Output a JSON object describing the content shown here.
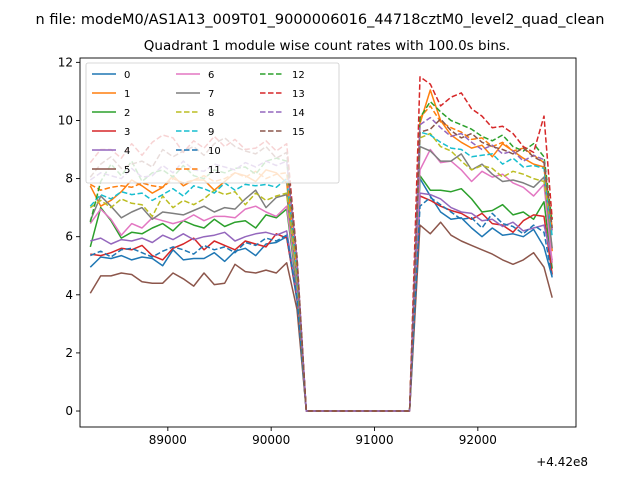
{
  "figure": {
    "suptitle": "n file: modeM0/AS1A13_009T01_9000006016_44718cztM0_level2_quad_clean",
    "offset_label": "+4.42e8"
  },
  "chart_data": {
    "type": "line",
    "title": "Quadrant 1 module wise count rates with 100.0s bins.",
    "xlabel": "",
    "ylabel": "",
    "x_offset": 442000000,
    "xlim": [
      88150,
      92950
    ],
    "ylim": [
      -0.55,
      12.15
    ],
    "xticks": [
      89000,
      90000,
      91000,
      92000
    ],
    "xtick_labels": [
      "89000",
      "90000",
      "91000",
      "92000"
    ],
    "yticks": [
      0,
      2,
      4,
      6,
      8,
      10,
      12
    ],
    "ytick_labels": [
      "0",
      "2",
      "4",
      "6",
      "8",
      "10",
      "12"
    ],
    "grid": false,
    "legend": {
      "placement": "top-left",
      "columns": 3
    },
    "x": [
      88250,
      88350,
      88450,
      88550,
      88650,
      88750,
      88850,
      88950,
      89050,
      89150,
      89250,
      89350,
      89450,
      89550,
      89650,
      89750,
      89850,
      89950,
      90050,
      90150,
      90250,
      90340,
      90500,
      90700,
      90900,
      91100,
      91340,
      91440,
      91540,
      91640,
      91740,
      91840,
      91940,
      92040,
      92140,
      92240,
      92340,
      92440,
      92540,
      92640,
      92720
    ],
    "series": [
      {
        "name": "0",
        "color": "#1f77b4",
        "dashed": false,
        "values": [
          4.95,
          5.3,
          5.25,
          5.35,
          5.2,
          5.3,
          5.25,
          5.0,
          5.55,
          5.2,
          5.25,
          5.25,
          5.45,
          5.15,
          5.5,
          5.6,
          5.35,
          5.75,
          5.8,
          6.0,
          3.8,
          0,
          0,
          0,
          0,
          0,
          0,
          8.0,
          7.4,
          6.85,
          6.6,
          6.65,
          6.3,
          6.0,
          6.3,
          6.05,
          6.1,
          6.0,
          6.25,
          5.65,
          4.6
        ]
      },
      {
        "name": "1",
        "color": "#ff7f0e",
        "dashed": false,
        "values": [
          7.75,
          7.05,
          7.25,
          7.55,
          7.95,
          7.75,
          7.5,
          7.7,
          8.1,
          7.75,
          7.95,
          7.95,
          7.6,
          7.9,
          8.2,
          8.1,
          7.9,
          8.3,
          8.2,
          7.85,
          4.5,
          0,
          0,
          0,
          0,
          0,
          0,
          9.9,
          11.05,
          10.0,
          9.5,
          9.25,
          9.05,
          9.15,
          8.75,
          9.2,
          8.95,
          8.7,
          8.5,
          8.4,
          5.5
        ]
      },
      {
        "name": "2",
        "color": "#2ca02c",
        "dashed": false,
        "values": [
          5.65,
          7.0,
          6.55,
          5.95,
          6.15,
          6.1,
          6.3,
          6.45,
          6.2,
          6.55,
          6.4,
          6.3,
          6.6,
          6.35,
          6.5,
          6.55,
          6.3,
          6.75,
          6.65,
          6.95,
          4.2,
          0,
          0,
          0,
          0,
          0,
          0,
          8.1,
          7.6,
          7.6,
          7.55,
          7.65,
          7.3,
          6.85,
          6.9,
          7.1,
          6.75,
          6.85,
          6.6,
          7.2,
          4.9
        ]
      },
      {
        "name": "3",
        "color": "#d62728",
        "dashed": false,
        "values": [
          5.4,
          5.35,
          5.45,
          5.6,
          5.55,
          5.7,
          5.35,
          5.2,
          5.6,
          5.75,
          5.95,
          5.55,
          5.85,
          5.7,
          5.55,
          5.85,
          5.75,
          5.65,
          6.1,
          5.95,
          3.9,
          0,
          0,
          0,
          0,
          0,
          0,
          7.4,
          7.25,
          7.05,
          6.9,
          6.8,
          6.6,
          6.8,
          6.45,
          6.4,
          6.15,
          6.55,
          6.75,
          6.7,
          4.7
        ]
      },
      {
        "name": "4",
        "color": "#9467bd",
        "dashed": false,
        "values": [
          5.85,
          5.95,
          5.75,
          5.9,
          5.85,
          5.95,
          5.8,
          6.05,
          5.9,
          6.1,
          5.9,
          6.0,
          6.05,
          6.15,
          5.85,
          6.0,
          6.1,
          6.15,
          6.05,
          6.2,
          4.0,
          0,
          0,
          0,
          0,
          0,
          0,
          7.5,
          7.45,
          7.3,
          7.0,
          6.85,
          6.8,
          6.55,
          6.6,
          6.35,
          6.5,
          6.2,
          6.3,
          6.4,
          5.2
        ]
      },
      {
        "name": "5",
        "color": "#8c564b",
        "dashed": false,
        "values": [
          4.05,
          4.65,
          4.65,
          4.75,
          4.7,
          4.45,
          4.4,
          4.4,
          4.75,
          4.55,
          4.3,
          4.75,
          4.35,
          4.4,
          5.05,
          4.8,
          4.75,
          4.85,
          4.75,
          5.1,
          3.5,
          0,
          0,
          0,
          0,
          0,
          0,
          6.4,
          6.1,
          6.5,
          6.05,
          5.85,
          5.7,
          5.55,
          5.4,
          5.2,
          5.05,
          5.2,
          5.45,
          4.95,
          3.9
        ]
      },
      {
        "name": "6",
        "color": "#e377c2",
        "dashed": false,
        "values": [
          6.45,
          6.95,
          6.6,
          6.05,
          6.45,
          6.3,
          6.65,
          6.55,
          6.45,
          6.55,
          6.75,
          6.55,
          6.7,
          6.7,
          6.65,
          6.95,
          7.05,
          6.85,
          6.7,
          7.05,
          4.4,
          0,
          0,
          0,
          0,
          0,
          0,
          8.3,
          9.0,
          8.55,
          8.6,
          8.3,
          7.9,
          8.25,
          8.05,
          8.15,
          7.85,
          7.7,
          7.4,
          7.8,
          5.1
        ]
      },
      {
        "name": "7",
        "color": "#7f7f7f",
        "dashed": false,
        "values": [
          6.55,
          7.4,
          7.05,
          6.65,
          6.85,
          7.0,
          6.6,
          6.85,
          6.8,
          6.75,
          6.9,
          7.05,
          6.85,
          7.0,
          6.95,
          7.3,
          7.6,
          7.0,
          7.35,
          7.45,
          4.5,
          0,
          0,
          0,
          0,
          0,
          0,
          9.1,
          8.95,
          8.6,
          8.6,
          8.85,
          8.3,
          8.5,
          8.15,
          7.9,
          7.95,
          7.85,
          7.7,
          8.05,
          5.6
        ]
      },
      {
        "name": "8",
        "color": "#bcbd22",
        "dashed": true,
        "values": [
          7.0,
          7.25,
          7.0,
          7.3,
          7.15,
          7.1,
          6.7,
          7.4,
          7.0,
          7.25,
          7.1,
          7.3,
          7.6,
          7.45,
          7.55,
          7.1,
          7.5,
          7.25,
          7.4,
          7.5,
          4.6,
          0,
          0,
          0,
          0,
          0,
          0,
          9.4,
          9.55,
          9.1,
          8.95,
          8.6,
          8.3,
          8.45,
          8.35,
          8.05,
          8.25,
          8.15,
          8.0,
          7.9,
          6.1
        ]
      },
      {
        "name": "9",
        "color": "#17becf",
        "dashed": true,
        "values": [
          7.05,
          7.45,
          7.3,
          7.55,
          7.45,
          7.5,
          7.25,
          7.45,
          7.65,
          7.4,
          7.75,
          7.65,
          7.5,
          7.85,
          7.6,
          7.8,
          7.75,
          7.8,
          7.7,
          8.0,
          4.8,
          0,
          0,
          0,
          0,
          0,
          0,
          9.6,
          9.5,
          9.25,
          9.05,
          9.0,
          8.75,
          8.8,
          8.85,
          8.5,
          8.7,
          8.4,
          8.45,
          8.35,
          6.0
        ]
      },
      {
        "name": "10",
        "color": "#1f77b4",
        "dashed": true,
        "values": [
          5.35,
          5.5,
          5.3,
          5.55,
          5.6,
          5.45,
          5.3,
          5.5,
          5.65,
          5.55,
          5.4,
          5.7,
          5.55,
          5.65,
          5.45,
          5.8,
          5.7,
          5.95,
          5.85,
          6.05,
          3.9,
          0,
          0,
          0,
          0,
          0,
          0,
          7.05,
          7.35,
          7.1,
          6.85,
          6.6,
          6.65,
          6.3,
          6.8,
          6.45,
          6.35,
          6.1,
          6.4,
          6.15,
          4.6
        ]
      },
      {
        "name": "11",
        "color": "#ff7f0e",
        "dashed": true,
        "values": [
          7.8,
          7.6,
          7.7,
          7.75,
          7.7,
          7.85,
          7.75,
          7.7,
          8.0,
          7.85,
          7.95,
          8.1,
          7.9,
          8.0,
          8.2,
          8.05,
          8.25,
          8.0,
          8.15,
          8.2,
          4.9,
          0,
          0,
          0,
          0,
          0,
          0,
          10.1,
          10.5,
          9.95,
          9.75,
          9.6,
          9.35,
          9.4,
          9.1,
          9.25,
          8.95,
          9.05,
          8.8,
          8.55,
          6.3
        ]
      },
      {
        "name": "12",
        "color": "#2ca02c",
        "dashed": true,
        "values": [
          6.5,
          7.9,
          8.5,
          8.1,
          8.6,
          7.9,
          8.2,
          8.3,
          8.05,
          8.45,
          8.1,
          8.0,
          8.3,
          8.2,
          8.35,
          8.4,
          8.15,
          8.6,
          8.7,
          8.6,
          5.1,
          0,
          0,
          0,
          0,
          0,
          0,
          10.1,
          10.65,
          10.3,
          10.0,
          9.85,
          9.7,
          9.45,
          9.3,
          9.5,
          9.1,
          8.95,
          9.2,
          8.75,
          6.5
        ]
      },
      {
        "name": "13",
        "color": "#d62728",
        "dashed": true,
        "values": [
          8.55,
          9.0,
          9.0,
          8.7,
          9.2,
          8.8,
          9.25,
          9.5,
          9.4,
          8.9,
          9.3,
          9.05,
          9.45,
          9.1,
          9.35,
          9.0,
          9.05,
          9.3,
          8.95,
          9.2,
          5.3,
          0,
          0,
          0,
          0,
          0,
          0,
          11.5,
          11.25,
          10.5,
          10.8,
          10.95,
          10.4,
          10.15,
          9.75,
          9.8,
          9.55,
          9.1,
          8.9,
          10.15,
          6.6
        ]
      },
      {
        "name": "14",
        "color": "#9467bd",
        "dashed": true,
        "values": [
          7.95,
          8.2,
          8.1,
          8.0,
          8.35,
          8.05,
          8.1,
          8.45,
          8.2,
          8.6,
          8.3,
          8.25,
          8.5,
          8.4,
          8.3,
          8.55,
          8.4,
          8.6,
          8.45,
          8.6,
          5.2,
          0,
          0,
          0,
          0,
          0,
          0,
          9.85,
          10.1,
          9.75,
          9.45,
          9.55,
          9.25,
          9.0,
          9.15,
          8.85,
          8.95,
          8.6,
          8.8,
          8.65,
          6.2
        ]
      },
      {
        "name": "15",
        "color": "#8c564b",
        "dashed": true,
        "values": [
          8.05,
          8.5,
          8.75,
          8.35,
          8.5,
          8.6,
          8.4,
          9.0,
          8.75,
          8.95,
          9.1,
          8.8,
          9.2,
          9.4,
          9.1,
          8.95,
          8.85,
          9.1,
          8.7,
          8.9,
          5.3,
          0,
          0,
          0,
          0,
          0,
          0,
          9.6,
          9.7,
          10.05,
          9.65,
          9.4,
          9.55,
          9.25,
          9.1,
          9.0,
          8.85,
          9.05,
          8.75,
          8.55,
          6.3
        ]
      }
    ]
  }
}
